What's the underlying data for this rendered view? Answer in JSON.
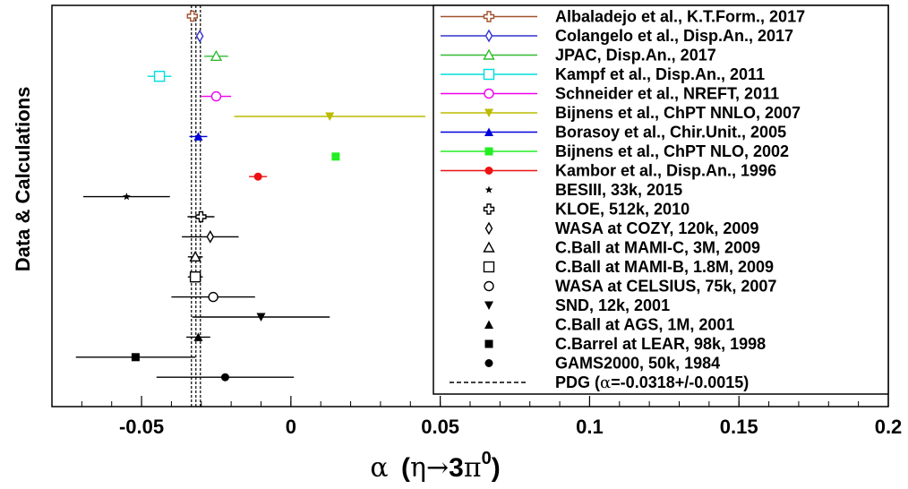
{
  "chart_data": {
    "type": "scatter",
    "ylabel": "Data & Calculations",
    "xlabel": {
      "alpha": "α",
      "open": "(",
      "eta": "η",
      "arrow": "→",
      "three": "3",
      "pi": "π",
      "sup": "0",
      "close": ")"
    },
    "xlim": [
      -0.08,
      0.2
    ],
    "xticks": [
      {
        "value": -0.05,
        "label": "-0.05"
      },
      {
        "value": 0,
        "label": "0"
      },
      {
        "value": 0.05,
        "label": "0.05"
      },
      {
        "value": 0.1,
        "label": "0.1"
      },
      {
        "value": 0.15,
        "label": "0.15"
      },
      {
        "value": 0.2,
        "label": "0.2"
      }
    ],
    "grid": false,
    "legend_position": "top-right",
    "pdg": {
      "center": -0.0318,
      "err": 0.0015,
      "label_pre": "PDG (",
      "label_alpha": "α",
      "label_post": "=-0.0318+/-0.0015)"
    },
    "series": [
      {
        "name": "Albaladejo et al., K.T.Form., 2017",
        "marker": "cross-open",
        "color": "#a0522d",
        "x": -0.033,
        "xerr": 0.001
      },
      {
        "name": "Colangelo et al., Disp.An., 2017",
        "marker": "diamond-open",
        "color": "#3333cc",
        "x": -0.0305,
        "xerr": 0.0005
      },
      {
        "name": "JPAC, Disp.An., 2017",
        "marker": "triangle-open",
        "color": "#33bb33",
        "x": -0.025,
        "xerr": 0.004
      },
      {
        "name": "Kampf et al., Disp.An., 2011",
        "marker": "square-open",
        "color": "#00dddd",
        "x": -0.044,
        "xerr": 0.004
      },
      {
        "name": "Schneider et al., NREFT, 2011",
        "marker": "circle-open",
        "color": "#ee00ee",
        "x": -0.025,
        "xerr": 0.005
      },
      {
        "name": "Bijnens et al., ChPT NNLO, 2007",
        "marker": "triangle-down",
        "color": "#bbbb00",
        "x": 0.013,
        "xerr": 0.032
      },
      {
        "name": "Borasoy et al., Chir.Unit., 2005",
        "marker": "triangle-up",
        "color": "#0000dd",
        "x": -0.031,
        "xerr": 0.003
      },
      {
        "name": "Bijnens et al., ChPT NLO, 2002",
        "marker": "square",
        "color": "#22ee22",
        "x": 0.015,
        "xerr": 0
      },
      {
        "name": "Kambor et al., Disp.An., 1996",
        "marker": "circle",
        "color": "#ee1111",
        "x": -0.011,
        "xerr": 0.003
      },
      {
        "name": "BESIII, 33k, 2015",
        "marker": "star",
        "color": "#000000",
        "x": -0.055,
        "xerr": 0.0145
      },
      {
        "name": "KLOE, 512k, 2010",
        "marker": "cross-open",
        "color": "#000000",
        "x": -0.0301,
        "xerr": 0.0045
      },
      {
        "name": "WASA at COZY, 120k, 2009",
        "marker": "diamond-open",
        "color": "#000000",
        "x": -0.027,
        "xerr": 0.0095
      },
      {
        "name": "C.Ball at MAMI-C, 3M, 2009",
        "marker": "triangle-open",
        "color": "#000000",
        "x": -0.032,
        "xerr": 0.0025
      },
      {
        "name": "C.Ball at MAMI-B, 1.8M, 2009",
        "marker": "square-open",
        "color": "#000000",
        "x": -0.032,
        "xerr": 0.0025
      },
      {
        "name": "WASA at CELSIUS, 75k, 2007",
        "marker": "circle-open",
        "color": "#000000",
        "x": -0.026,
        "xerr": 0.014
      },
      {
        "name": "SND, 12k, 2001",
        "marker": "triangle-down",
        "color": "#000000",
        "x": -0.01,
        "xerr": 0.023
      },
      {
        "name": "C.Ball at AGS, 1M, 2001",
        "marker": "triangle-up",
        "color": "#000000",
        "x": -0.031,
        "xerr": 0.004
      },
      {
        "name": "C.Barrel at LEAR, 98k, 1998",
        "marker": "square",
        "color": "#000000",
        "x": -0.052,
        "xerr": 0.02
      },
      {
        "name": "GAMS2000, 50k, 1984",
        "marker": "circle",
        "color": "#000000",
        "x": -0.022,
        "xerr": 0.023
      }
    ]
  }
}
